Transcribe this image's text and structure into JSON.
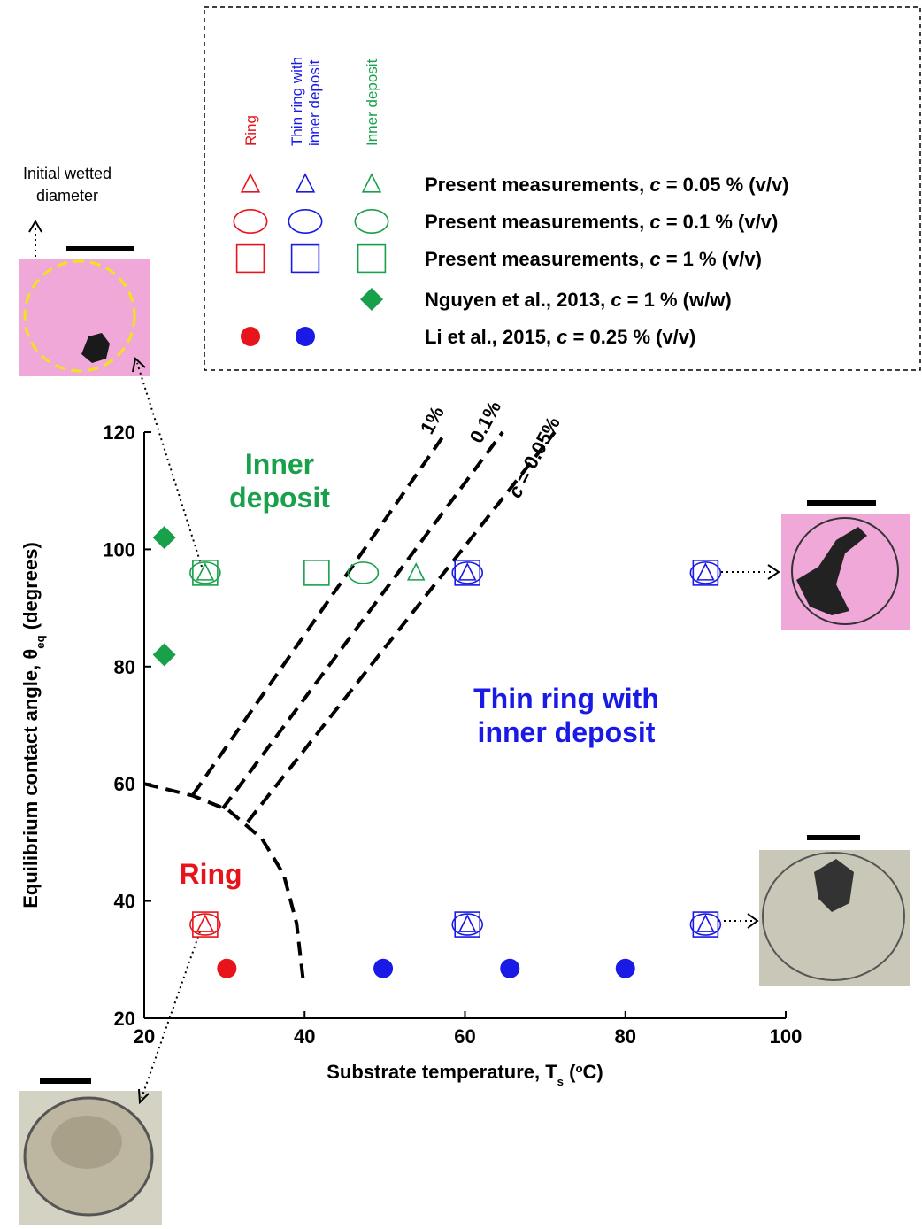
{
  "chart_data": {
    "type": "scatter",
    "xlim": [
      20,
      100
    ],
    "ylim": [
      20,
      120
    ],
    "xticks": [
      20,
      40,
      60,
      80,
      100
    ],
    "yticks": [
      20,
      40,
      60,
      80,
      100,
      120
    ],
    "x_label": [
      {
        "text": "Substrate temperature, T"
      },
      {
        "text": "s",
        "sub": true
      },
      {
        "text": " ("
      },
      {
        "text": "o",
        "sup": true
      },
      {
        "text": "C)"
      }
    ],
    "y_label": [
      {
        "text": "Equilibrium contact angle, θ"
      },
      {
        "text": "eq",
        "sub": true
      },
      {
        "text": " (degrees)"
      }
    ],
    "legend": {
      "columns": [
        {
          "lines": [
            "Ring"
          ],
          "color": "#e8141b"
        },
        {
          "lines": [
            "Thin ring with",
            "inner deposit"
          ],
          "color": "#1a1ae6"
        },
        {
          "lines": [
            "Inner deposit"
          ],
          "color": "#19a04b"
        }
      ],
      "rows": [
        {
          "marker": "triangle",
          "columns": [
            0,
            1,
            2
          ],
          "label": [
            {
              "text": "Present measurements, "
            },
            {
              "text": "c",
              "italic": true
            },
            {
              "text": " = 0.05 % (v/v)"
            }
          ]
        },
        {
          "marker": "circle",
          "columns": [
            0,
            1,
            2
          ],
          "label": [
            {
              "text": "Present measurements, "
            },
            {
              "text": "c",
              "italic": true
            },
            {
              "text": " = 0.1 % (v/v)"
            }
          ]
        },
        {
          "marker": "square",
          "columns": [
            0,
            1,
            2
          ],
          "label": [
            {
              "text": "Present measurements, "
            },
            {
              "text": "c",
              "italic": true
            },
            {
              "text": " = 1 % (v/v)"
            }
          ]
        },
        {
          "marker": "diamond",
          "columns": [
            2
          ],
          "label": [
            {
              "text": "Nguyen et al., 2013, "
            },
            {
              "text": "c",
              "italic": true
            },
            {
              "text": " = 1 % (w/w)"
            }
          ]
        },
        {
          "marker": "dot",
          "columns": [
            0,
            1
          ],
          "label": [
            {
              "text": "Li et al., 2015, "
            },
            {
              "text": "c",
              "italic": true
            },
            {
              "text": " = 0.25 % (v/v)"
            }
          ]
        }
      ]
    },
    "series": [
      {
        "marker": "square",
        "color": "#e8141b",
        "x": [
          27.6
        ],
        "y": [
          36
        ]
      },
      {
        "marker": "circle",
        "color": "#e8141b",
        "x": [
          27.6
        ],
        "y": [
          36
        ]
      },
      {
        "marker": "triangle",
        "color": "#e8141b",
        "x": [
          27.6
        ],
        "y": [
          36
        ]
      },
      {
        "marker": "square",
        "color": "#1a1ae6",
        "x": [
          60.3,
          90,
          60.3,
          90
        ],
        "y": [
          96,
          96,
          36,
          36
        ]
      },
      {
        "marker": "circle",
        "color": "#1a1ae6",
        "x": [
          60.3,
          90,
          60.3,
          90
        ],
        "y": [
          96,
          96,
          36,
          36
        ]
      },
      {
        "marker": "triangle",
        "color": "#1a1ae6",
        "x": [
          60.3,
          90,
          60.3,
          90
        ],
        "y": [
          96,
          96,
          36,
          36
        ]
      },
      {
        "marker": "square",
        "color": "#19a04b",
        "x": [
          27.6,
          41.5
        ],
        "y": [
          96,
          96
        ]
      },
      {
        "marker": "circle",
        "color": "#19a04b",
        "x": [
          27.6,
          47.3
        ],
        "y": [
          96,
          96
        ]
      },
      {
        "marker": "triangle",
        "color": "#19a04b",
        "x": [
          27.6,
          53.9
        ],
        "y": [
          96,
          96
        ]
      },
      {
        "marker": "diamond",
        "color": "#19a04b",
        "x": [
          22.5,
          22.5
        ],
        "y": [
          102,
          82
        ]
      },
      {
        "marker": "dot",
        "color": "#e8141b",
        "x": [
          30.3
        ],
        "y": [
          28.5
        ]
      },
      {
        "marker": "dot",
        "color": "#1a1ae6",
        "x": [
          49.8,
          65.6,
          80
        ],
        "y": [
          28.5,
          28.5,
          28.5
        ]
      }
    ],
    "boundaries": [
      {
        "x": [
          20,
          26,
          30.5,
          34.7,
          37.4,
          39.0,
          39.9
        ],
        "y": [
          60,
          58,
          55.5,
          50.6,
          44.5,
          36.2,
          25.6
        ]
      },
      {
        "x": [
          26.1,
          57.7
        ],
        "y": [
          58.2,
          120.1
        ],
        "label": [
          {
            "text": "1%"
          }
        ]
      },
      {
        "x": [
          29.8,
          64.7
        ],
        "y": [
          55.8,
          120
        ],
        "label": [
          {
            "text": "0.1%"
          }
        ]
      },
      {
        "x": [
          32.9,
          71.2
        ],
        "y": [
          53.5,
          120
        ],
        "label": [
          {
            "text": "c",
            "italic": true
          },
          {
            "text": " = 0.05%"
          }
        ]
      }
    ],
    "regions": [
      {
        "lines": [
          "Inner",
          "deposit"
        ],
        "color": "#19a04b"
      },
      {
        "lines": [
          "Thin ring with",
          "inner deposit"
        ],
        "color": "#1a1ae6"
      },
      {
        "lines": [
          "Ring"
        ],
        "color": "#e8141b"
      }
    ],
    "photo_note": [
      "Initial wetted",
      "diameter"
    ]
  }
}
